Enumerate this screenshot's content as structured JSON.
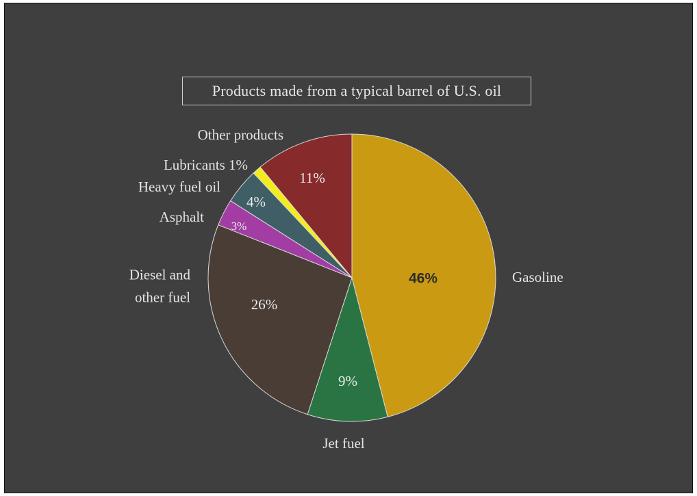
{
  "chart_data": {
    "type": "pie",
    "title": "Products made from a typical barrel of U.S. oil",
    "slices": [
      {
        "label": "Gasoline",
        "value": 46,
        "value_label": "46%",
        "color": "#c99a12"
      },
      {
        "label": "Jet fuel",
        "value": 9,
        "value_label": "9%",
        "color": "#2a7444"
      },
      {
        "label": "Diesel and other fuel",
        "label_lines": [
          "Diesel and",
          "other fuel"
        ],
        "value": 26,
        "value_label": "26%",
        "color": "#4a3d36"
      },
      {
        "label": "Asphalt",
        "value": 3,
        "value_label": "3%",
        "color": "#a23ea3"
      },
      {
        "label": "Heavy fuel oil",
        "value": 4,
        "value_label": "4%",
        "color": "#3f5e66"
      },
      {
        "label": "Lubricants 1%",
        "value": 1,
        "value_label": "",
        "color": "#f2ec1c"
      },
      {
        "label": "Other products",
        "value": 11,
        "value_label": "11%",
        "color": "#862a2b"
      }
    ],
    "start": "top",
    "direction": "clockwise",
    "legend": "none"
  }
}
